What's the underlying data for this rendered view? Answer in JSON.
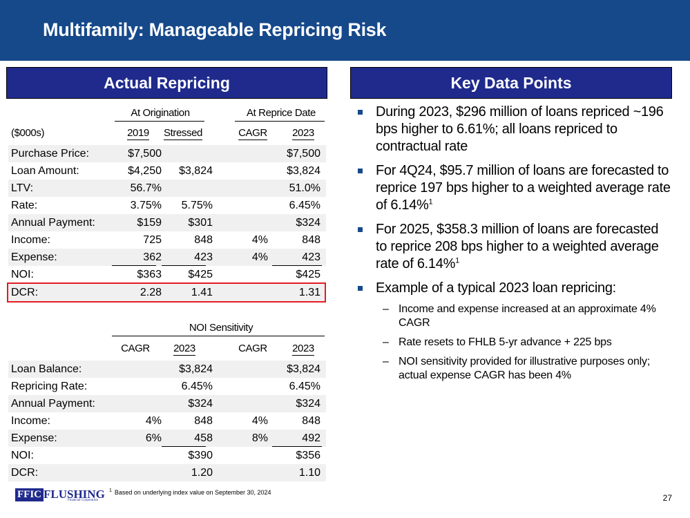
{
  "title": "Multifamily: Manageable Repricing Risk",
  "colors": {
    "title_bar": "#16498a",
    "section_header": "#1f2a8c",
    "highlight_box": "#e31b23",
    "row_shade": "#f0f0f0"
  },
  "left_section": {
    "header": "Actual Repricing",
    "table1": {
      "group_headers": [
        "At Origination",
        "At Reprice Date"
      ],
      "unit_label": "($000s)",
      "columns": [
        "2019",
        "Stressed",
        "CAGR",
        "2023"
      ],
      "rows": [
        {
          "label": "Purchase Price:",
          "cells": [
            "$7,500",
            "",
            "",
            "$7,500"
          ]
        },
        {
          "label": "Loan Amount:",
          "cells": [
            "$4,250",
            "$3,824",
            "",
            "$3,824"
          ]
        },
        {
          "label": "LTV:",
          "cells": [
            "56.7%",
            "",
            "",
            "51.0%"
          ]
        },
        {
          "label": "Rate:",
          "cells": [
            "3.75%",
            "5.75%",
            "",
            "6.45%"
          ]
        },
        {
          "label": "Annual Payment:",
          "cells": [
            "$159",
            "$301",
            "",
            "$324"
          ]
        },
        {
          "label": "Income:",
          "cells": [
            "725",
            "848",
            "4%",
            "848"
          ]
        },
        {
          "label": "Expense:",
          "cells": [
            "362",
            "423",
            "4%",
            "423"
          ]
        },
        {
          "label": "NOI:",
          "cells": [
            "$363",
            "$425",
            "",
            "$425"
          ]
        },
        {
          "label": "DCR:",
          "cells": [
            "2.28",
            "1.41",
            "",
            "1.31"
          ]
        }
      ]
    },
    "table2": {
      "group_header": "NOI Sensitivity",
      "columns": [
        "CAGR",
        "2023",
        "CAGR",
        "2023"
      ],
      "rows": [
        {
          "label": "Loan Balance:",
          "cells": [
            "",
            "$3,824",
            "",
            "$3,824"
          ]
        },
        {
          "label": "Repricing Rate:",
          "cells": [
            "",
            "6.45%",
            "",
            "6.45%"
          ]
        },
        {
          "label": "Annual Payment:",
          "cells": [
            "",
            "$324",
            "",
            "$324"
          ]
        },
        {
          "label": "Income:",
          "cells": [
            "4%",
            "848",
            "4%",
            "848"
          ]
        },
        {
          "label": "Expense:",
          "cells": [
            "6%",
            "458",
            "8%",
            "492"
          ]
        },
        {
          "label": "NOI:",
          "cells": [
            "",
            "$390",
            "",
            "$356"
          ]
        },
        {
          "label": "DCR:",
          "cells": [
            "",
            "1.20",
            "",
            "1.10"
          ]
        }
      ]
    }
  },
  "right_section": {
    "header": "Key Data Points",
    "bullets": [
      {
        "text": "During 2023, $296 million of loans repriced ~196 bps higher to 6.61%; all loans repriced to contractual rate",
        "sup": ""
      },
      {
        "text": "For 4Q24, $95.7 million of loans are forecasted to reprice 197 bps higher to a weighted average rate of 6.14%",
        "sup": "1"
      },
      {
        "text": "For 2025, $358.3 million of loans are forecasted to reprice 208 bps higher to a weighted average rate of 6.14%",
        "sup": "1"
      },
      {
        "text": "Example of a typical 2023 loan repricing:",
        "sup": ""
      }
    ],
    "sub_bullets": [
      "Income and expense increased at an approximate 4% CAGR",
      "Rate resets to FHLB 5-yr advance + 225 bps",
      "NOI sensitivity provided for illustrative purposes only; actual expense CAGR has been 4%"
    ]
  },
  "footer": {
    "logo_mark": "FFIC",
    "logo_name": "FLUSHING",
    "logo_sub": "Financial Corporation",
    "footnote_mark": "1",
    "footnote": "Based on underlying index value on September 30, 2024",
    "page_number": "27"
  }
}
